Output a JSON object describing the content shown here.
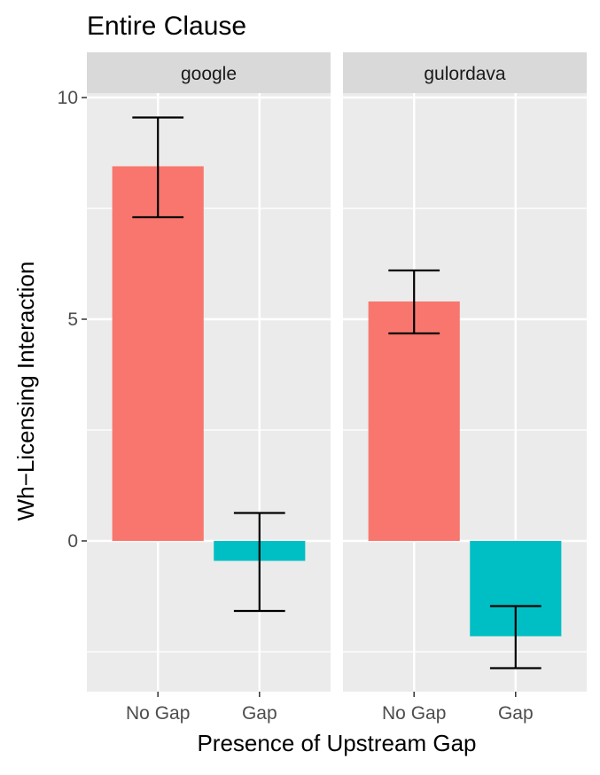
{
  "chart_data": {
    "type": "bar",
    "title": "Entire Clause",
    "xlabel": "Presence of Upstream Gap",
    "ylabel": "Wh−Licensing Interaction",
    "ylim": [
      -3.4,
      10.1
    ],
    "yticks": [
      0,
      5,
      10
    ],
    "categories": [
      "No Gap",
      "Gap"
    ],
    "grid": true,
    "legend": "none",
    "colors": {
      "No Gap": "#F8766D",
      "Gap": "#00BFC4",
      "panel_background": "#EBEBEB",
      "strip_background": "#D9D9D9",
      "grid": "#FFFFFF",
      "errorbar": "#000000"
    },
    "panels": [
      {
        "strip": "google",
        "values": [
          8.45,
          -0.45
        ],
        "error_low": [
          7.3,
          -1.58
        ],
        "error_high": [
          9.55,
          0.63
        ]
      },
      {
        "strip": "gulordava",
        "values": [
          5.4,
          -2.15
        ],
        "error_low": [
          4.68,
          -2.87
        ],
        "error_high": [
          6.1,
          -1.47
        ]
      }
    ]
  }
}
